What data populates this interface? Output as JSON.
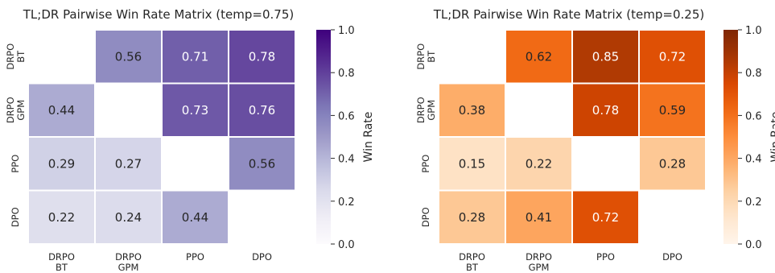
{
  "chart_data": [
    {
      "type": "heatmap",
      "title": "TL;DR Pairwise Win Rate Matrix (temp=0.75)",
      "rows": [
        [
          "DRPO",
          "BT"
        ],
        [
          "DRPO",
          "GPM"
        ],
        [
          "PPO"
        ],
        [
          "DPO"
        ]
      ],
      "cols": [
        [
          "DRPO",
          "BT"
        ],
        [
          "DRPO",
          "GPM"
        ],
        [
          "PPO"
        ],
        [
          "DPO"
        ]
      ],
      "values": [
        [
          null,
          0.56,
          0.71,
          0.78
        ],
        [
          0.44,
          null,
          0.73,
          0.76
        ],
        [
          0.29,
          0.27,
          null,
          0.56
        ],
        [
          0.22,
          0.24,
          0.44,
          null
        ]
      ],
      "colorbar": {
        "label": "Win Rate",
        "range": [
          0.0,
          1.0
        ],
        "ticks": [
          "0.0",
          "0.2",
          "0.4",
          "0.6",
          "0.8",
          "1.0"
        ],
        "colormap": "Purples",
        "low_color": "#fcfbfd",
        "high_color": "#3f007d"
      }
    },
    {
      "type": "heatmap",
      "title": "TL;DR Pairwise Win Rate Matrix (temp=0.25)",
      "rows": [
        [
          "DRPO",
          "BT"
        ],
        [
          "DRPO",
          "GPM"
        ],
        [
          "PPO"
        ],
        [
          "DPO"
        ]
      ],
      "cols": [
        [
          "DRPO",
          "BT"
        ],
        [
          "DRPO",
          "GPM"
        ],
        [
          "PPO"
        ],
        [
          "DPO"
        ]
      ],
      "values": [
        [
          null,
          0.62,
          0.85,
          0.72
        ],
        [
          0.38,
          null,
          0.78,
          0.59
        ],
        [
          0.15,
          0.22,
          null,
          0.28
        ],
        [
          0.28,
          0.41,
          0.72,
          null
        ]
      ],
      "colorbar": {
        "label": "Win Rate",
        "range": [
          0.0,
          1.0
        ],
        "ticks": [
          "0.0",
          "0.2",
          "0.4",
          "0.6",
          "0.8",
          "1.0"
        ],
        "colormap": "Oranges",
        "low_color": "#fff5eb",
        "high_color": "#7f2704"
      }
    }
  ]
}
